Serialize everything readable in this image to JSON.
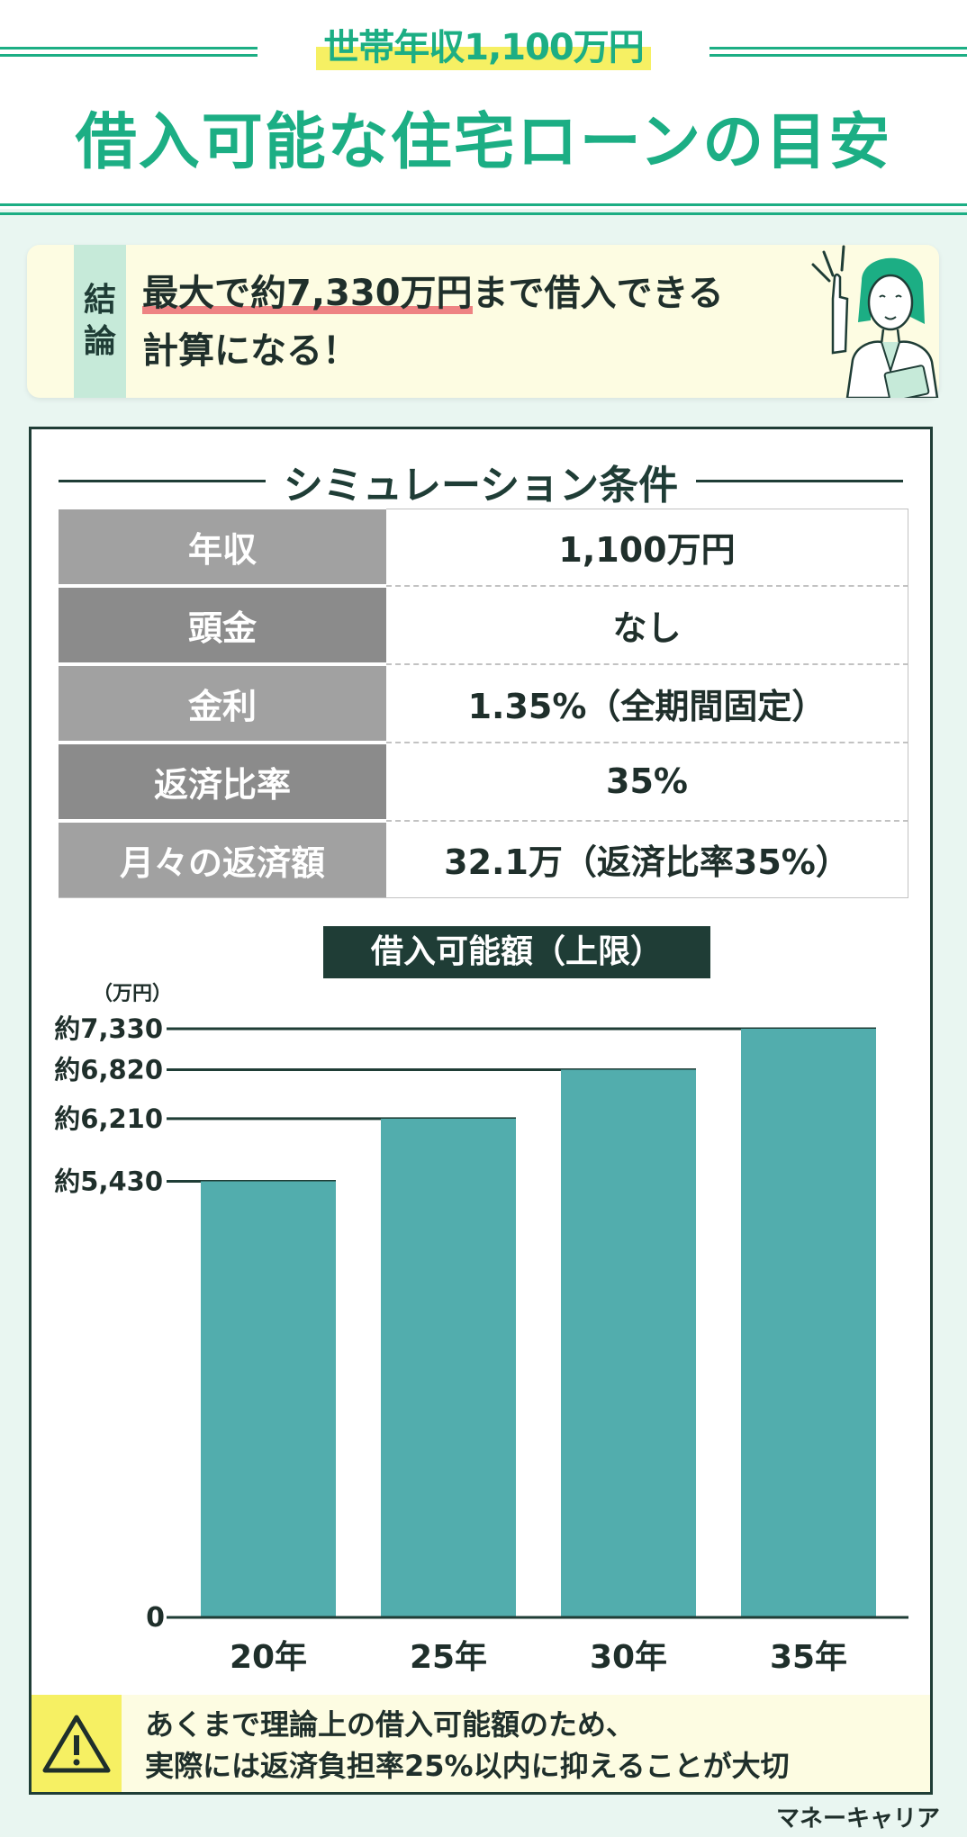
{
  "header": {
    "tag": "世帯年収1,100万円",
    "title": "借入可能な住宅ローンの目安"
  },
  "conclusion": {
    "tag_chars": [
      "結",
      "論"
    ],
    "highlight": "最大で約7,330万円",
    "line1_rest": "まで借入できる",
    "line2": "計算になる！",
    "illustration": "woman-pointing-illustration"
  },
  "conditions": {
    "title": "シミュレーション条件",
    "rows": [
      {
        "label": "年収",
        "value": "1,100万円"
      },
      {
        "label": "頭金",
        "value": "なし"
      },
      {
        "label": "金利",
        "value": "1.35%（全期間固定）"
      },
      {
        "label": "返済比率",
        "value": "35%"
      },
      {
        "label": "月々の返済額",
        "value": "32.1万（返済比率35%）"
      }
    ]
  },
  "chart_data": {
    "type": "bar",
    "title": "借入可能額（上限）",
    "unit_label": "（万円）",
    "categories": [
      "20年",
      "25年",
      "30年",
      "35年"
    ],
    "values": [
      5430,
      6210,
      6820,
      7330
    ],
    "ytick_labels": [
      "約5,430",
      "約6,210",
      "約6,820",
      "約7,330"
    ],
    "zero_label": "0",
    "ylim": [
      0,
      7330
    ],
    "bar_color": "#52adad",
    "grid": "reference lines at each bar value",
    "legend": "none"
  },
  "note": {
    "icon": "warning-icon",
    "line1": "あくまで理論上の借入可能額のため、",
    "line2": "実際には返済負担率25%以内に抑えることが大切"
  },
  "brand": "マネーキャリア",
  "colors": {
    "accent": "#1cae84",
    "dark": "#1f3d36",
    "bar": "#52adad",
    "highlight_yellow": "#f6f063",
    "highlight_red": "#ee8383"
  }
}
